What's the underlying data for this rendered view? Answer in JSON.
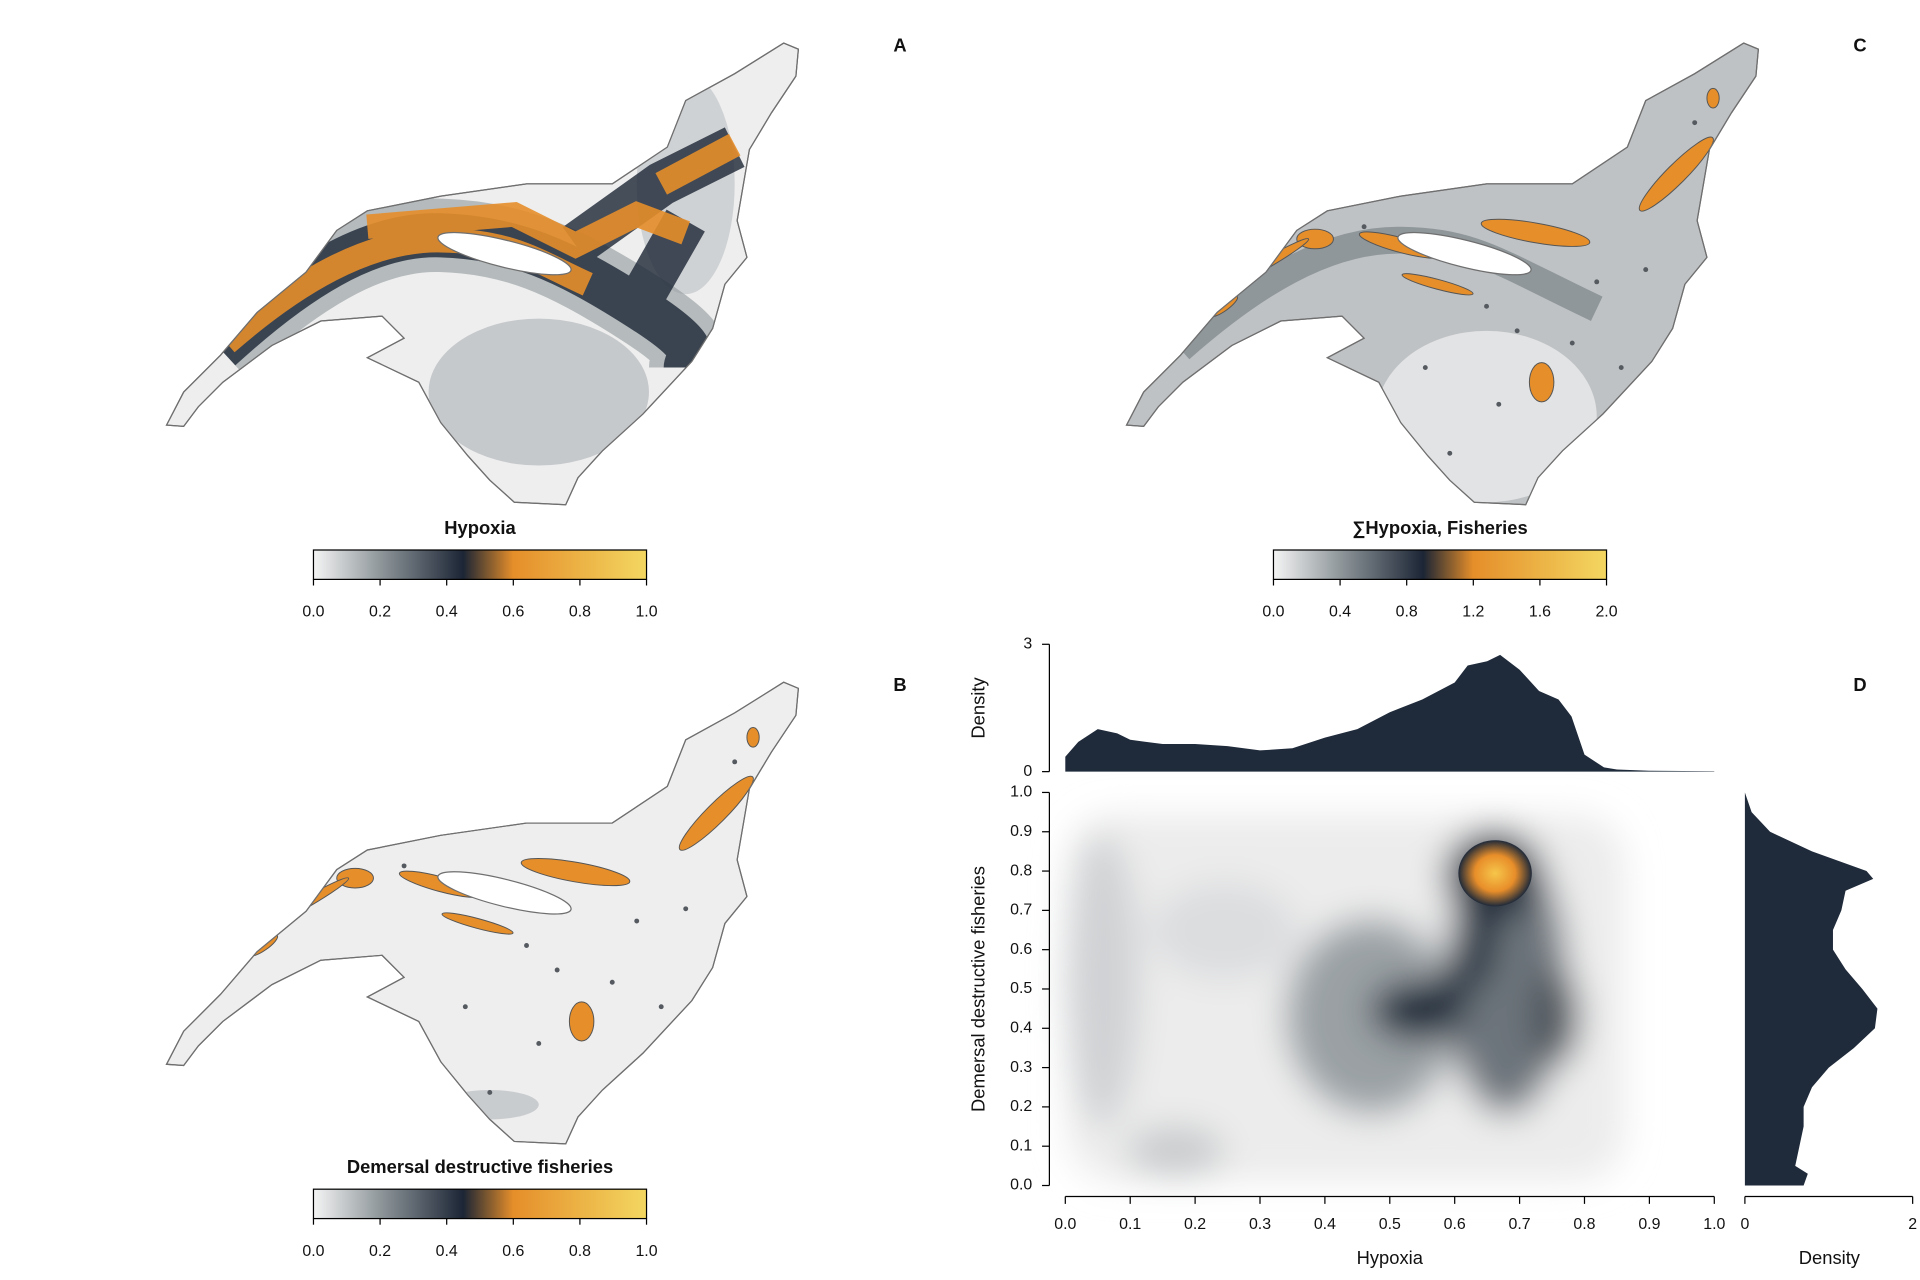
{
  "chart_data": [
    {
      "type": "map",
      "panel_label": "A",
      "colorbar": {
        "title": "Hypoxia",
        "lim": [
          0,
          1
        ],
        "ticks": [
          {
            "value": 0,
            "label": "0.0"
          },
          0.2,
          0.4,
          0.6,
          0.8,
          {
            "value": 1,
            "label": "1.0"
          }
        ],
        "colors": [
          "#f4f4f4",
          "#8f979b",
          "#1c2535",
          "#e58e2a",
          "#f3d760"
        ]
      }
    },
    {
      "type": "map",
      "panel_label": "B",
      "colorbar": {
        "title": "Demersal destructive fisheries",
        "lim": [
          0,
          1
        ],
        "ticks": [
          {
            "value": 0,
            "label": "0.0"
          },
          0.2,
          0.4,
          0.6,
          0.8,
          {
            "value": 1,
            "label": "1.0"
          }
        ],
        "colors": [
          "#f4f4f4",
          "#8f979b",
          "#1c2535",
          "#e58e2a",
          "#f3d760"
        ]
      }
    },
    {
      "type": "map",
      "panel_label": "C",
      "colorbar": {
        "title": "∑Hypoxia, Fisheries",
        "lim": [
          0,
          2
        ],
        "ticks": [
          {
            "value": 0,
            "label": "0.0"
          },
          0.4,
          0.8,
          1.2,
          1.6,
          {
            "value": 2,
            "label": "2.0"
          }
        ],
        "colors": [
          "#f4f4f4",
          "#8f979b",
          "#1c2535",
          "#e58e2a",
          "#f3d760"
        ]
      }
    },
    {
      "type": "density2d",
      "panel_label": "D",
      "xlabel": "Hypoxia",
      "ylabel": "Demersal destructive fisheries",
      "xlim": [
        0,
        1
      ],
      "ylim": [
        0,
        1
      ],
      "xticks": [
        {
          "value": 0,
          "label": "0.0"
        },
        0.1,
        0.2,
        0.3,
        0.4,
        0.5,
        0.6,
        0.7,
        0.8,
        0.9,
        {
          "value": 1,
          "label": "1.0"
        }
      ],
      "yticks": [
        {
          "value": 0,
          "label": "0.0"
        },
        0.1,
        0.2,
        0.3,
        0.4,
        0.5,
        0.6,
        0.7,
        0.8,
        0.9,
        {
          "value": 1,
          "label": "1.0"
        }
      ],
      "color": "#1f2a3a",
      "top_density": {
        "ylabel": "Density",
        "ylim": [
          0,
          3
        ],
        "yticks": [
          0,
          3
        ],
        "x": [
          0,
          0.02,
          0.05,
          0.08,
          0.1,
          0.15,
          0.2,
          0.25,
          0.3,
          0.35,
          0.4,
          0.45,
          0.5,
          0.55,
          0.6,
          0.62,
          0.65,
          0.67,
          0.7,
          0.73,
          0.76,
          0.78,
          0.8,
          0.83,
          0.85,
          0.9,
          1
        ],
        "values": [
          0.35,
          0.7,
          1.0,
          0.9,
          0.75,
          0.65,
          0.65,
          0.6,
          0.5,
          0.55,
          0.8,
          1.0,
          1.4,
          1.7,
          2.1,
          2.5,
          2.6,
          2.75,
          2.4,
          1.9,
          1.7,
          1.3,
          0.4,
          0.1,
          0.05,
          0.02,
          0.01
        ]
      },
      "right_density": {
        "xlabel": "Density",
        "xlim": [
          0,
          2
        ],
        "xticks": [
          0,
          2
        ],
        "y": [
          1,
          0.95,
          0.9,
          0.85,
          0.8,
          0.78,
          0.75,
          0.7,
          0.65,
          0.6,
          0.55,
          0.5,
          0.45,
          0.4,
          0.35,
          0.3,
          0.25,
          0.2,
          0.15,
          0.1,
          0.05,
          0.03,
          0
        ],
        "values": [
          0,
          0.08,
          0.3,
          0.8,
          1.45,
          1.53,
          1.2,
          1.15,
          1.05,
          1.05,
          1.2,
          1.4,
          1.58,
          1.55,
          1.3,
          1.0,
          0.8,
          0.7,
          0.7,
          0.65,
          0.6,
          0.75,
          0.7
        ]
      }
    }
  ]
}
